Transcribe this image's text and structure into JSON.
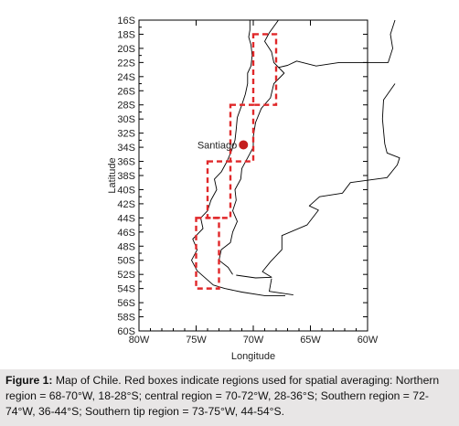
{
  "map": {
    "y_axis_title": "Latitude",
    "x_axis_title": "Longitude",
    "lat_ticks": [
      "16S",
      "18S",
      "20S",
      "22S",
      "24S",
      "26S",
      "28S",
      "30S",
      "32S",
      "34S",
      "36S",
      "38S",
      "40S",
      "42S",
      "44S",
      "46S",
      "48S",
      "50S",
      "52S",
      "54S",
      "56S",
      "58S",
      "60S"
    ],
    "lon_ticks": [
      "80W",
      "75W",
      "70W",
      "65W",
      "60W"
    ],
    "lat_range": [
      -60,
      -16
    ],
    "lon_range": [
      -80,
      -60
    ],
    "regions": [
      {
        "name": "Northern region",
        "lon": [
          -70,
          -68
        ],
        "lat": [
          -28,
          -18
        ]
      },
      {
        "name": "central region",
        "lon": [
          -72,
          -70
        ],
        "lat": [
          -36,
          -28
        ]
      },
      {
        "name": "Southern region",
        "lon": [
          -74,
          -72
        ],
        "lat": [
          -44,
          -36
        ]
      },
      {
        "name": "Southern tip region",
        "lon": [
          -75,
          -73
        ],
        "lat": [
          -54,
          -44
        ]
      }
    ],
    "box_color": "#e0282a",
    "city": {
      "label": "Santiago",
      "lon": -70.7,
      "lat": -33.4,
      "color": "#c41e1e"
    }
  },
  "caption": {
    "lead": "Figure 1:",
    "text": " Map of Chile. Red boxes indicate regions used for spatial averaging: Northern region = 68-70°W, 18-28°S; central region = 70-72°W, 28-36°S; Southern region = 72-74°W, 36-44°S; Southern tip region = 73-75°W, 44-54°S."
  }
}
